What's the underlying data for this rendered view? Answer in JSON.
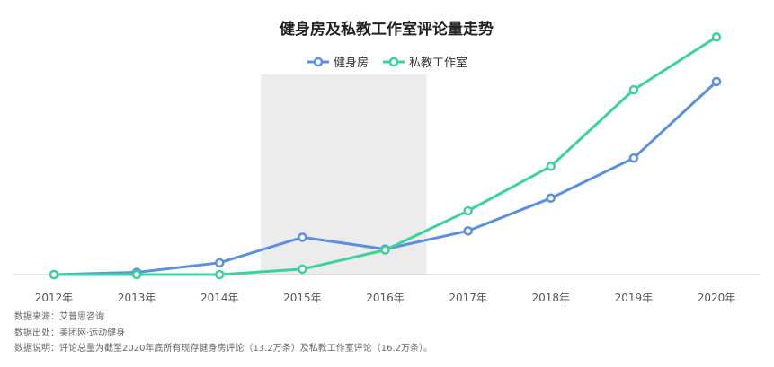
{
  "chart_data": {
    "type": "line",
    "title": "健身房及私教工作室评论量走势",
    "categories": [
      "2012年",
      "2013年",
      "2014年",
      "2015年",
      "2016年",
      "2017年",
      "2018年",
      "2019年",
      "2020年"
    ],
    "series": [
      {
        "name": "健身房",
        "color": "#5B8FDF",
        "values": [
          0.0,
          0.25,
          1.3,
          4.1,
          2.8,
          4.8,
          8.4,
          12.8,
          21.2
        ]
      },
      {
        "name": "私教工作室",
        "color": "#3CD29B",
        "values": [
          0.0,
          0.0,
          0.0,
          0.6,
          2.7,
          7.0,
          11.9,
          20.3,
          26.1
        ]
      }
    ],
    "highlight_band": {
      "from": "2015年",
      "to": "2017年",
      "color": "#ECECEC"
    },
    "ylim": [
      0,
      28
    ],
    "grid": false,
    "legend_position": "top-center"
  },
  "footnotes": {
    "source": "数据来源：艾普思咨询",
    "origin": "数据出处：美团网·运动健身",
    "note": "数据说明：评论总量为截至2020年底所有现存健身房评论（13.2万条）及私教工作室评论（16.2万条）。"
  }
}
